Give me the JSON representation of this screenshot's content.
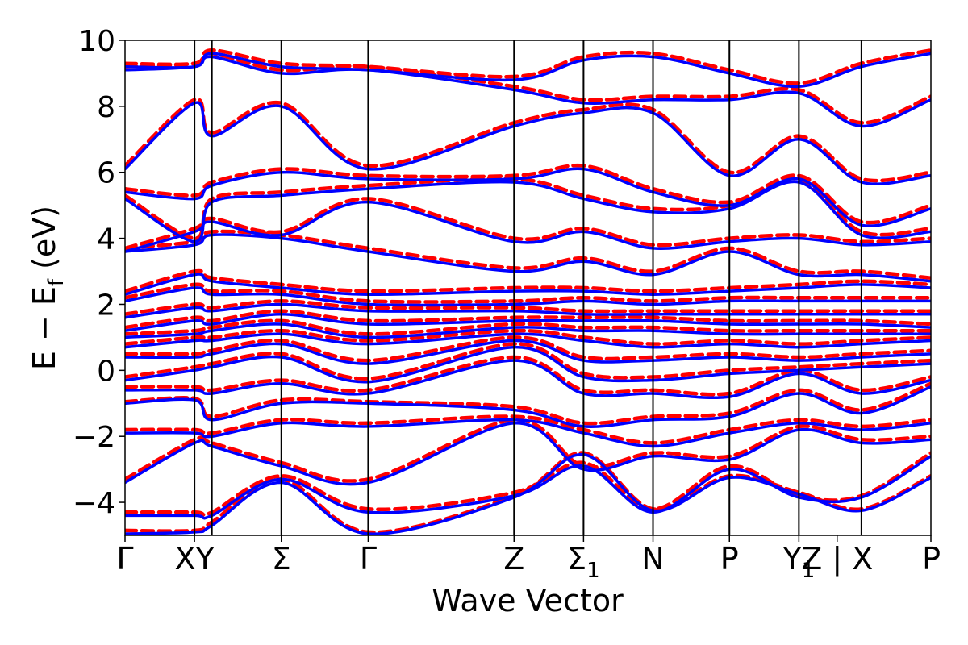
{
  "chart_data": {
    "type": "line",
    "title": "",
    "xlabel": "Wave Vector",
    "ylabel": "E − E",
    "ylabel_sub": "f",
    "ylabel_unit": " (eV)",
    "ylim": [
      -5,
      10
    ],
    "xlim": [
      0,
      11.6
    ],
    "y_ticks": [
      -4,
      -2,
      0,
      2,
      4,
      6,
      8,
      10
    ],
    "y_tick_labels": [
      "−4",
      "−2",
      "0",
      "2",
      "4",
      "6",
      "8",
      "10"
    ],
    "grid": false,
    "legend": "none",
    "high_symmetry_points": [
      {
        "x": 0.0,
        "label": "Γ",
        "sub": ""
      },
      {
        "x": 1.0,
        "label": "XY",
        "sub": ""
      },
      {
        "x": 2.25,
        "label": "Σ",
        "sub": ""
      },
      {
        "x": 3.5,
        "label": "Γ",
        "sub": ""
      },
      {
        "x": 5.6,
        "label": "Z",
        "sub": ""
      },
      {
        "x": 6.6,
        "label": "Σ",
        "sub": "1"
      },
      {
        "x": 7.6,
        "label": "N",
        "sub": ""
      },
      {
        "x": 8.7,
        "label": "P",
        "sub": ""
      },
      {
        "x": 9.7,
        "label": "Y",
        "sub": "1"
      },
      {
        "x": 10.25,
        "label": "Z | X",
        "sub": ""
      },
      {
        "x": 11.6,
        "label": "P",
        "sub": ""
      }
    ],
    "vertical_lines_x": [
      1.0,
      1.25,
      2.25,
      3.5,
      5.6,
      6.6,
      7.6,
      8.7,
      9.7,
      10.6
    ],
    "knots_x": [
      0,
      1.0,
      1.25,
      2.25,
      3.5,
      5.6,
      6.6,
      7.6,
      8.7,
      9.7,
      10.6,
      11.6
    ],
    "series": [
      {
        "style": "dashed",
        "color": "#ff0000",
        "bands": [
          [
            -4.85,
            -4.85,
            -4.6,
            -3.3,
            -4.9,
            -3.8,
            -2.5,
            -4.2,
            -3.2,
            -3.7,
            -4.2,
            -3.2
          ],
          [
            -4.3,
            -4.3,
            -4.3,
            -3.2,
            -4.2,
            -3.7,
            -2.8,
            -4.2,
            -2.9,
            -3.8,
            -3.8,
            -2.5
          ],
          [
            -3.3,
            -2.1,
            -2.2,
            -2.8,
            -3.3,
            -1.5,
            -2.9,
            -2.5,
            -2.6,
            -1.7,
            -2.1,
            -2.0
          ],
          [
            -1.8,
            -1.8,
            -1.9,
            -1.5,
            -1.6,
            -1.4,
            -1.8,
            -2.2,
            -1.8,
            -1.5,
            -1.7,
            -1.5
          ],
          [
            -0.95,
            -0.85,
            -1.4,
            -0.9,
            -0.95,
            -1.1,
            -1.6,
            -1.4,
            -1.3,
            -0.6,
            -1.2,
            -0.4
          ],
          [
            -0.5,
            -0.5,
            -0.6,
            -0.3,
            -0.6,
            0.4,
            -0.6,
            -0.6,
            -0.7,
            0.0,
            -0.6,
            -0.2
          ],
          [
            -0.2,
            0.1,
            0.2,
            0.5,
            -0.25,
            0.8,
            -0.1,
            -0.2,
            0.0,
            0.1,
            0.2,
            0.3
          ],
          [
            0.5,
            0.5,
            0.6,
            0.9,
            0.3,
            1.0,
            0.4,
            0.4,
            0.5,
            0.4,
            0.5,
            0.6
          ],
          [
            0.8,
            1.0,
            1.0,
            1.2,
            0.9,
            1.2,
            1.0,
            0.8,
            0.9,
            0.8,
            0.9,
            1.0
          ],
          [
            1.1,
            1.2,
            1.3,
            1.5,
            1.1,
            1.4,
            1.3,
            1.3,
            1.2,
            1.2,
            1.2,
            1.2
          ],
          [
            1.3,
            1.6,
            1.5,
            1.8,
            1.5,
            1.6,
            1.6,
            1.6,
            1.5,
            1.5,
            1.5,
            1.4
          ],
          [
            1.7,
            2.0,
            1.9,
            2.1,
            1.9,
            1.9,
            1.8,
            1.8,
            1.8,
            1.8,
            1.8,
            1.8
          ],
          [
            2.2,
            2.6,
            2.4,
            2.4,
            2.1,
            2.1,
            2.2,
            2.1,
            2.2,
            2.2,
            2.2,
            2.2
          ],
          [
            2.4,
            3.0,
            2.8,
            2.6,
            2.4,
            2.5,
            2.5,
            2.4,
            2.5,
            2.6,
            2.7,
            2.6
          ],
          [
            3.7,
            3.9,
            4.2,
            4.1,
            3.7,
            3.1,
            3.4,
            3.0,
            3.7,
            3.0,
            3.0,
            2.8
          ],
          [
            3.7,
            4.3,
            4.6,
            4.2,
            5.2,
            4.0,
            4.3,
            3.8,
            4.0,
            4.1,
            3.9,
            4.0
          ],
          [
            5.3,
            4.0,
            5.2,
            5.4,
            5.6,
            5.8,
            5.3,
            4.9,
            5.0,
            5.8,
            4.2,
            4.3
          ],
          [
            5.5,
            5.3,
            5.7,
            6.1,
            5.9,
            5.9,
            6.2,
            5.5,
            5.1,
            5.9,
            4.5,
            5.0
          ],
          [
            6.2,
            8.2,
            7.2,
            8.1,
            6.2,
            7.5,
            7.9,
            7.9,
            6.0,
            7.1,
            5.8,
            6.0
          ],
          [
            9.2,
            9.3,
            9.6,
            9.1,
            9.2,
            8.6,
            8.2,
            8.3,
            8.3,
            8.5,
            7.5,
            8.3
          ],
          [
            9.3,
            9.3,
            9.7,
            9.3,
            9.2,
            8.9,
            9.5,
            9.6,
            9.1,
            8.7,
            9.3,
            9.7
          ]
        ]
      },
      {
        "style": "solid",
        "color": "#0000ff",
        "bands": [
          [
            -4.95,
            -4.9,
            -4.7,
            -3.4,
            -4.95,
            -3.85,
            -2.55,
            -4.25,
            -3.25,
            -3.75,
            -4.25,
            -3.25
          ],
          [
            -4.4,
            -4.4,
            -4.4,
            -3.3,
            -4.3,
            -3.8,
            -2.9,
            -4.3,
            -3.0,
            -3.85,
            -3.85,
            -2.6
          ],
          [
            -3.4,
            -2.2,
            -2.3,
            -2.9,
            -3.4,
            -1.6,
            -3.0,
            -2.6,
            -2.7,
            -1.8,
            -2.2,
            -2.1
          ],
          [
            -1.9,
            -1.9,
            -2.0,
            -1.6,
            -1.7,
            -1.5,
            -1.9,
            -2.3,
            -1.9,
            -1.6,
            -1.8,
            -1.6
          ],
          [
            -1.0,
            -0.9,
            -1.5,
            -1.0,
            -1.0,
            -1.2,
            -1.7,
            -1.5,
            -1.4,
            -0.7,
            -1.3,
            -0.5
          ],
          [
            -0.6,
            -0.6,
            -0.7,
            -0.4,
            -0.7,
            0.3,
            -0.7,
            -0.7,
            -0.8,
            -0.1,
            -0.7,
            -0.3
          ],
          [
            -0.3,
            0.0,
            0.1,
            0.4,
            -0.35,
            0.7,
            -0.2,
            -0.3,
            -0.1,
            0.0,
            0.1,
            0.2
          ],
          [
            0.4,
            0.4,
            0.5,
            0.8,
            0.2,
            0.9,
            0.3,
            0.3,
            0.4,
            0.3,
            0.4,
            0.5
          ],
          [
            0.7,
            0.9,
            0.9,
            1.1,
            0.8,
            1.1,
            0.9,
            0.7,
            0.8,
            0.7,
            0.8,
            0.9
          ],
          [
            1.0,
            1.1,
            1.2,
            1.4,
            1.0,
            1.3,
            1.2,
            1.2,
            1.1,
            1.1,
            1.1,
            1.1
          ],
          [
            1.2,
            1.5,
            1.4,
            1.7,
            1.4,
            1.5,
            1.5,
            1.5,
            1.4,
            1.4,
            1.4,
            1.3
          ],
          [
            1.6,
            1.9,
            1.8,
            2.0,
            1.8,
            1.8,
            1.7,
            1.7,
            1.7,
            1.7,
            1.7,
            1.7
          ],
          [
            2.1,
            2.5,
            2.3,
            2.3,
            2.0,
            2.0,
            2.1,
            2.0,
            2.1,
            2.1,
            2.1,
            2.1
          ],
          [
            2.3,
            2.9,
            2.7,
            2.5,
            2.3,
            2.4,
            2.4,
            2.3,
            2.4,
            2.5,
            2.6,
            2.5
          ],
          [
            3.6,
            3.8,
            4.1,
            4.0,
            3.6,
            3.0,
            3.3,
            2.9,
            3.6,
            2.9,
            2.9,
            2.7
          ],
          [
            3.6,
            4.2,
            4.5,
            4.1,
            5.1,
            3.9,
            4.2,
            3.7,
            3.9,
            4.0,
            3.8,
            3.9
          ],
          [
            5.2,
            3.9,
            5.1,
            5.3,
            5.5,
            5.7,
            5.2,
            4.8,
            4.9,
            5.7,
            4.1,
            4.2
          ],
          [
            5.4,
            5.2,
            5.6,
            6.0,
            5.8,
            5.8,
            6.1,
            5.4,
            5.0,
            5.8,
            4.4,
            4.9
          ],
          [
            6.1,
            8.1,
            7.1,
            8.0,
            6.1,
            7.4,
            7.8,
            7.8,
            5.9,
            7.0,
            5.7,
            5.9
          ],
          [
            9.1,
            9.2,
            9.5,
            9.0,
            9.1,
            8.5,
            8.1,
            8.2,
            8.2,
            8.4,
            7.4,
            8.2
          ],
          [
            9.2,
            9.2,
            9.6,
            9.2,
            9.1,
            8.8,
            9.4,
            9.5,
            9.0,
            8.6,
            9.2,
            9.6
          ]
        ]
      }
    ]
  }
}
